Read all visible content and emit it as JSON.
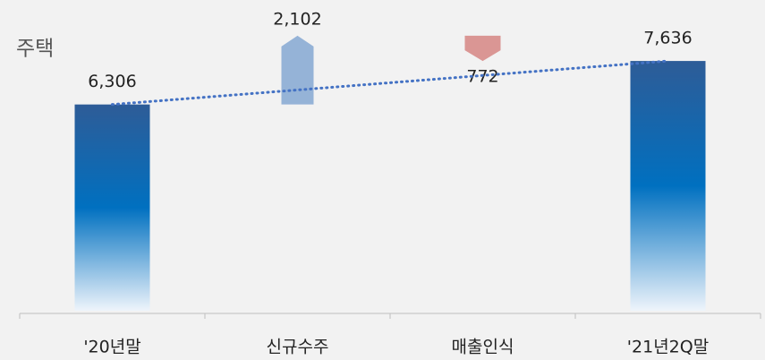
{
  "chart_data": {
    "type": "waterfall",
    "title": "주택",
    "categories": [
      "'20년말",
      "신규수주",
      "매출인식",
      "'21년2Q말"
    ],
    "values": [
      6306,
      2102,
      772,
      7636
    ],
    "value_labels": [
      "6,306",
      "2,102",
      "772",
      "7,636"
    ],
    "directions": [
      "total",
      "up",
      "down",
      "total"
    ],
    "colors": {
      "total": "#0070c0",
      "up": "#95b3d7",
      "down": "#da9694"
    },
    "ylim": [
      0,
      9500
    ]
  }
}
